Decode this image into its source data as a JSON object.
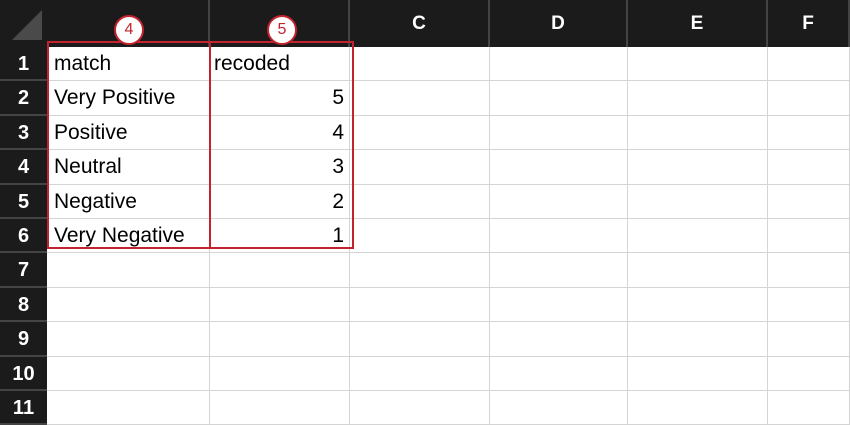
{
  "columns": [
    "",
    "",
    "C",
    "D",
    "E",
    "F"
  ],
  "rows": [
    "1",
    "2",
    "3",
    "4",
    "5",
    "6",
    "7",
    "8",
    "9",
    "10",
    "11"
  ],
  "cells": {
    "A": [
      "match",
      "Very Positive",
      "Positive",
      "Neutral",
      "Negative",
      "Very Negative"
    ],
    "B": [
      "recoded",
      "5",
      "4",
      "3",
      "2",
      "1"
    ]
  },
  "annotations": [
    "4",
    "5"
  ],
  "colors": {
    "header_bg": "#1b1b1b",
    "highlight": "#c3222f"
  }
}
